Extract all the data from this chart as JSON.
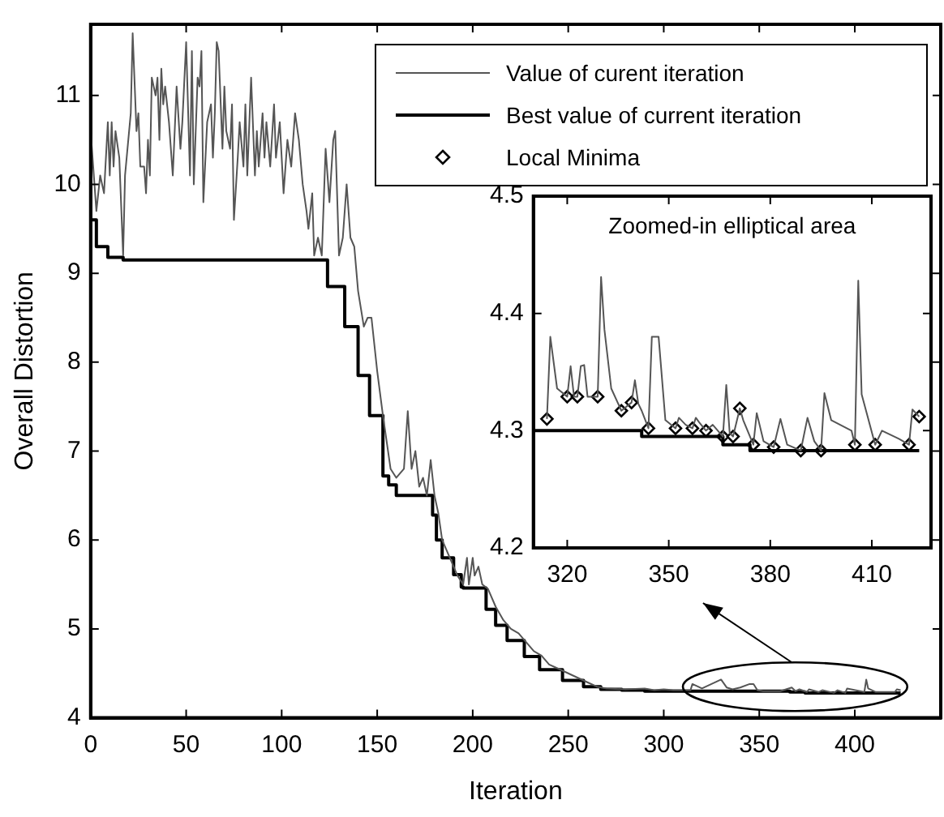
{
  "chart_data": [
    {
      "type": "line",
      "xlabel": "Iteration",
      "ylabel": "Overall Distortion",
      "xlim": [
        0,
        445
      ],
      "ylim": [
        4,
        11.8
      ],
      "xticks": [
        0,
        50,
        100,
        150,
        200,
        250,
        300,
        350,
        400
      ],
      "yticks": [
        4,
        5,
        6,
        7,
        8,
        9,
        10,
        11
      ],
      "legend": "top right",
      "series": [
        {
          "name": "Value of curent iteration",
          "color": "#555555",
          "x": [
            0,
            2,
            3,
            5,
            7,
            9,
            10,
            11,
            12,
            13,
            15,
            17,
            18,
            21,
            22,
            24,
            25,
            26,
            28,
            29,
            30,
            31,
            32,
            33,
            34,
            35,
            36,
            37,
            38,
            39,
            41,
            43,
            45,
            47,
            48,
            50,
            52,
            53,
            54,
            56,
            57,
            58,
            59,
            61,
            63,
            64,
            65,
            66,
            67,
            69,
            70,
            71,
            73,
            74,
            75,
            77,
            78,
            80,
            81,
            82,
            84,
            86,
            87,
            88,
            90,
            91,
            92,
            94,
            96,
            97,
            99,
            101,
            103,
            105,
            107,
            109,
            111,
            113,
            114,
            116,
            117,
            119,
            121,
            123,
            125,
            127,
            128,
            130,
            132,
            134,
            136,
            138,
            140,
            143,
            145,
            147,
            150,
            153,
            157,
            160,
            164,
            166,
            168,
            170,
            172,
            174,
            176,
            178,
            180,
            182,
            184,
            188,
            192,
            195,
            197,
            198,
            200,
            201,
            203,
            205,
            208,
            212,
            216,
            220,
            224,
            228,
            232,
            236,
            240,
            245,
            250,
            255,
            260,
            265,
            270,
            280,
            290,
            295,
            300,
            305,
            310,
            314,
            315,
            320,
            330,
            333,
            336,
            340,
            345,
            347,
            349,
            352,
            357,
            361,
            367,
            369,
            371,
            375,
            376,
            381,
            383,
            389,
            391,
            395,
            396,
            405,
            406,
            407,
            411,
            421,
            422,
            424
          ],
          "values": [
            10.6,
            10.0,
            9.7,
            10.1,
            9.9,
            10.7,
            10.1,
            10.7,
            10.2,
            10.6,
            10.3,
            9.2,
            10.1,
            10.8,
            11.7,
            10.6,
            10.8,
            10.2,
            10.2,
            9.9,
            10.5,
            10.1,
            11.2,
            11.1,
            11.0,
            11.2,
            10.5,
            11.3,
            10.9,
            11.1,
            10.7,
            10.1,
            11.1,
            10.4,
            10.7,
            11.6,
            10.1,
            11.5,
            10.0,
            11.2,
            11.1,
            11.5,
            9.8,
            10.7,
            10.9,
            10.3,
            10.8,
            11.6,
            11.5,
            10.4,
            11.1,
            10.6,
            10.4,
            10.9,
            9.6,
            10.3,
            10.7,
            10.2,
            10.9,
            10.1,
            11.2,
            10.1,
            10.6,
            10.2,
            10.8,
            10.3,
            10.7,
            10.2,
            10.9,
            10.3,
            10.7,
            9.9,
            10.5,
            10.2,
            10.8,
            10.5,
            10.0,
            9.7,
            9.5,
            9.9,
            9.2,
            9.4,
            9.2,
            10.4,
            9.8,
            10.5,
            10.6,
            9.2,
            9.4,
            10.0,
            9.4,
            9.3,
            8.8,
            8.4,
            8.5,
            8.5,
            7.9,
            7.4,
            6.8,
            6.7,
            6.8,
            7.45,
            6.8,
            7.0,
            6.6,
            6.7,
            6.5,
            6.9,
            6.5,
            6.3,
            6.0,
            5.8,
            5.6,
            5.5,
            5.8,
            5.5,
            5.8,
            5.6,
            5.7,
            5.5,
            5.45,
            5.25,
            5.1,
            5.0,
            4.95,
            4.85,
            4.75,
            4.7,
            4.6,
            4.55,
            4.5,
            4.45,
            4.4,
            4.35,
            4.33,
            4.32,
            4.33,
            4.31,
            4.32,
            4.31,
            4.31,
            4.31,
            4.38,
            4.33,
            4.43,
            4.34,
            4.32,
            4.34,
            4.38,
            4.38,
            4.31,
            4.3,
            4.3,
            4.3,
            4.34,
            4.3,
            4.32,
            4.29,
            4.32,
            4.29,
            4.31,
            4.28,
            4.31,
            4.28,
            4.33,
            4.29,
            4.43,
            4.33,
            4.29,
            4.29,
            4.32,
            4.31
          ]
        },
        {
          "name": "Best value of current iteration",
          "type": "step",
          "color": "#000000",
          "x": [
            0,
            3,
            9,
            17,
            124,
            133,
            140,
            146,
            153,
            156,
            160,
            173,
            179,
            181,
            184,
            190,
            194,
            195,
            207,
            212,
            218,
            227,
            235,
            247,
            258,
            267,
            278,
            290,
            342,
            366,
            374,
            388,
            424
          ],
          "values": [
            10.6,
            9.6,
            9.3,
            9.18,
            9.15,
            8.85,
            8.4,
            7.85,
            7.4,
            6.72,
            6.62,
            6.5,
            6.5,
            6.28,
            6.0,
            5.8,
            5.61,
            5.47,
            5.46,
            5.22,
            5.04,
            4.87,
            4.69,
            4.54,
            4.42,
            4.35,
            4.32,
            4.31,
            4.3,
            4.3,
            4.29,
            4.28,
            4.28
          ]
        }
      ]
    },
    {
      "type": "line",
      "title": "Zoomed-in elliptical area",
      "xlim": [
        310,
        427.5
      ],
      "ylim": [
        4.2,
        4.5
      ],
      "xticks": [
        320,
        350,
        380,
        410
      ],
      "yticks": [
        4.2,
        4.3,
        4.4,
        4.5
      ],
      "series": [
        {
          "color": "#555555",
          "x": [
            314,
            315,
            317,
            320,
            321,
            322,
            323,
            324,
            325,
            326,
            329,
            330,
            331,
            333,
            336,
            339,
            340,
            341,
            342,
            344,
            345,
            347,
            349,
            352,
            353,
            355,
            357,
            358,
            359,
            361,
            363,
            366,
            367,
            368,
            369,
            371,
            372,
            375,
            376,
            378,
            381,
            383,
            385,
            389,
            391,
            393,
            395,
            396,
            398,
            404,
            405,
            406,
            407,
            411,
            413,
            418,
            421,
            422,
            424
          ],
          "values": [
            4.31,
            4.38,
            4.336,
            4.329,
            4.355,
            4.329,
            4.329,
            4.355,
            4.356,
            4.329,
            4.329,
            4.431,
            4.386,
            4.336,
            4.317,
            4.324,
            4.343,
            4.323,
            4.317,
            4.302,
            4.38,
            4.38,
            4.309,
            4.302,
            4.311,
            4.305,
            4.302,
            4.311,
            4.307,
            4.3,
            4.305,
            4.295,
            4.339,
            4.298,
            4.295,
            4.319,
            4.309,
            4.288,
            4.315,
            4.291,
            4.286,
            4.31,
            4.288,
            4.283,
            4.311,
            4.291,
            4.283,
            4.332,
            4.309,
            4.3,
            4.288,
            4.428,
            4.331,
            4.288,
            4.3,
            4.293,
            4.288,
            4.318,
            4.312
          ]
        },
        {
          "type": "step",
          "color": "#000000",
          "x": [
            310,
            342,
            366,
            374,
            388,
            424
          ],
          "values": [
            4.309,
            4.3,
            4.295,
            4.288,
            4.283,
            4.283
          ]
        },
        {
          "name": "Local Minima",
          "type": "scatter",
          "marker": "diamond",
          "color": "#000000",
          "x": [
            314,
            320,
            323,
            329,
            336,
            339,
            344,
            352,
            357,
            361,
            366,
            369,
            371,
            375,
            381,
            389,
            395,
            405,
            411,
            421,
            424
          ],
          "values": [
            4.31,
            4.329,
            4.329,
            4.329,
            4.317,
            4.324,
            4.302,
            4.302,
            4.302,
            4.3,
            4.295,
            4.295,
            4.319,
            4.288,
            4.286,
            4.283,
            4.283,
            4.288,
            4.288,
            4.288,
            4.312
          ]
        }
      ]
    }
  ]
}
